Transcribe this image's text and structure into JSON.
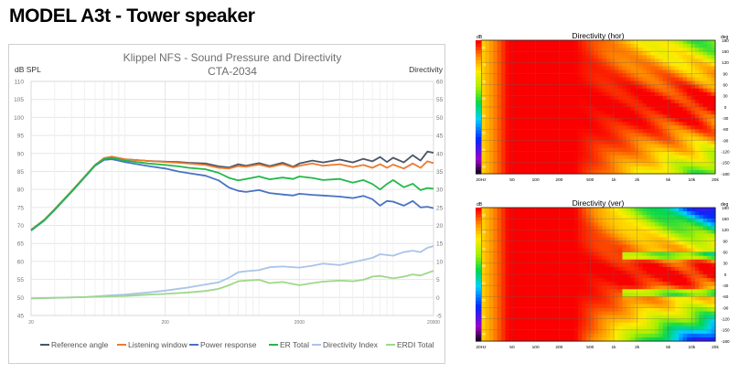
{
  "page": {
    "title": "MODEL A3t - Tower speaker"
  },
  "colors": {
    "reference_angle": "#4a5666",
    "listening_window": "#ec7a30",
    "power_response": "#4a72c4",
    "er_total": "#22b84a",
    "directivity_index": "#a9c4ea",
    "erdi_total": "#9fd88a",
    "grid": "#e6e6e6"
  },
  "chart_data": [
    {
      "type": "line",
      "title": "Klippel NFS - Sound Pressure and Directivity",
      "subtitle": "CTA-2034",
      "ylabel_left": "dB SPL",
      "ylabel_right": "Directivity",
      "xscale": "log",
      "xlim": [
        20,
        20000
      ],
      "ylim_left": [
        45,
        110
      ],
      "ylim_right": [
        -5,
        60
      ],
      "yticks_left": [
        "110",
        "105",
        "100",
        "95",
        "90",
        "85",
        "80",
        "75",
        "70",
        "65",
        "60",
        "55",
        "50",
        "45"
      ],
      "yticks_right": [
        "60",
        "55",
        "50",
        "45",
        "40",
        "35",
        "30",
        "25",
        "20",
        "15",
        "10",
        "5",
        "0",
        "-5"
      ],
      "xticks": [
        {
          "value": 20,
          "label": "20"
        },
        {
          "value": 200,
          "label": "200"
        },
        {
          "value": 2000,
          "label": "2000"
        },
        {
          "value": 20000,
          "label": "20000"
        }
      ],
      "grid": true,
      "legend_position": "bottom",
      "series": [
        {
          "name": "Reference angle",
          "axis": "left",
          "color_key": "reference_angle",
          "points": [
            [
              20,
              68.8
            ],
            [
              25,
              71.5
            ],
            [
              30,
              74.5
            ],
            [
              40,
              79.5
            ],
            [
              50,
              83.5
            ],
            [
              60,
              86.8
            ],
            [
              70,
              88.6
            ],
            [
              80,
              89.0
            ],
            [
              100,
              88.4
            ],
            [
              150,
              87.9
            ],
            [
              200,
              87.7
            ],
            [
              250,
              87.6
            ],
            [
              300,
              87.4
            ],
            [
              400,
              87.2
            ],
            [
              500,
              86.4
            ],
            [
              600,
              86.1
            ],
            [
              700,
              87.0
            ],
            [
              800,
              86.6
            ],
            [
              1000,
              87.3
            ],
            [
              1200,
              86.5
            ],
            [
              1500,
              87.4
            ],
            [
              1800,
              86.3
            ],
            [
              2000,
              87.2
            ],
            [
              2500,
              88.0
            ],
            [
              3000,
              87.5
            ],
            [
              4000,
              88.3
            ],
            [
              5000,
              87.5
            ],
            [
              6000,
              88.5
            ],
            [
              7000,
              87.8
            ],
            [
              8000,
              89.0
            ],
            [
              9000,
              87.6
            ],
            [
              10000,
              88.8
            ],
            [
              12000,
              87.5
            ],
            [
              14000,
              89.5
            ],
            [
              16000,
              88.0
            ],
            [
              18000,
              90.5
            ],
            [
              20000,
              90.2
            ]
          ]
        },
        {
          "name": "Listening window",
          "axis": "left",
          "color_key": "listening_window",
          "points": [
            [
              20,
              68.8
            ],
            [
              25,
              71.5
            ],
            [
              30,
              74.5
            ],
            [
              40,
              79.5
            ],
            [
              50,
              83.5
            ],
            [
              60,
              86.8
            ],
            [
              70,
              88.7
            ],
            [
              80,
              89.1
            ],
            [
              100,
              88.4
            ],
            [
              150,
              87.9
            ],
            [
              200,
              87.6
            ],
            [
              250,
              87.4
            ],
            [
              300,
              87.2
            ],
            [
              400,
              86.8
            ],
            [
              500,
              86.0
            ],
            [
              600,
              85.8
            ],
            [
              700,
              86.5
            ],
            [
              800,
              86.3
            ],
            [
              1000,
              86.9
            ],
            [
              1200,
              86.2
            ],
            [
              1500,
              87.0
            ],
            [
              1800,
              86.1
            ],
            [
              2000,
              86.6
            ],
            [
              2500,
              87.2
            ],
            [
              3000,
              86.6
            ],
            [
              4000,
              87.0
            ],
            [
              5000,
              86.2
            ],
            [
              6000,
              86.8
            ],
            [
              7000,
              86.0
            ],
            [
              8000,
              87.0
            ],
            [
              9000,
              86.0
            ],
            [
              10000,
              86.9
            ],
            [
              12000,
              85.8
            ],
            [
              14000,
              87.2
            ],
            [
              16000,
              86.0
            ],
            [
              18000,
              87.8
            ],
            [
              20000,
              87.3
            ]
          ]
        },
        {
          "name": "Power response",
          "axis": "left",
          "color_key": "power_response",
          "points": [
            [
              20,
              68.6
            ],
            [
              25,
              71.3
            ],
            [
              30,
              74.3
            ],
            [
              40,
              79.3
            ],
            [
              50,
              83.3
            ],
            [
              60,
              86.6
            ],
            [
              70,
              88.2
            ],
            [
              80,
              88.4
            ],
            [
              100,
              87.6
            ],
            [
              150,
              86.5
            ],
            [
              200,
              85.8
            ],
            [
              250,
              85.0
            ],
            [
              300,
              84.5
            ],
            [
              400,
              83.8
            ],
            [
              500,
              82.5
            ],
            [
              600,
              80.5
            ],
            [
              700,
              79.6
            ],
            [
              800,
              79.3
            ],
            [
              1000,
              79.8
            ],
            [
              1200,
              79.0
            ],
            [
              1500,
              78.6
            ],
            [
              1800,
              78.3
            ],
            [
              2000,
              78.8
            ],
            [
              2500,
              78.5
            ],
            [
              3000,
              78.3
            ],
            [
              4000,
              78.0
            ],
            [
              5000,
              77.6
            ],
            [
              6000,
              78.2
            ],
            [
              7000,
              77.3
            ],
            [
              8000,
              75.5
            ],
            [
              9000,
              76.8
            ],
            [
              10000,
              76.6
            ],
            [
              12000,
              75.5
            ],
            [
              14000,
              76.8
            ],
            [
              16000,
              75.0
            ],
            [
              18000,
              75.2
            ],
            [
              20000,
              74.8
            ]
          ]
        },
        {
          "name": "ER Total",
          "axis": "left",
          "color_key": "er_total",
          "points": [
            [
              20,
              68.7
            ],
            [
              25,
              71.4
            ],
            [
              30,
              74.4
            ],
            [
              40,
              79.4
            ],
            [
              50,
              83.4
            ],
            [
              60,
              86.7
            ],
            [
              70,
              88.5
            ],
            [
              80,
              88.8
            ],
            [
              100,
              88.0
            ],
            [
              150,
              87.2
            ],
            [
              200,
              86.8
            ],
            [
              250,
              86.4
            ],
            [
              300,
              86.0
            ],
            [
              400,
              85.6
            ],
            [
              500,
              84.6
            ],
            [
              600,
              83.2
            ],
            [
              700,
              82.5
            ],
            [
              800,
              82.9
            ],
            [
              1000,
              83.6
            ],
            [
              1200,
              82.8
            ],
            [
              1500,
              83.3
            ],
            [
              1800,
              82.9
            ],
            [
              2000,
              83.6
            ],
            [
              2500,
              83.2
            ],
            [
              3000,
              82.6
            ],
            [
              4000,
              82.9
            ],
            [
              5000,
              81.9
            ],
            [
              6000,
              82.6
            ],
            [
              7000,
              81.5
            ],
            [
              8000,
              80.0
            ],
            [
              9000,
              81.5
            ],
            [
              10000,
              82.6
            ],
            [
              12000,
              80.6
            ],
            [
              14000,
              81.6
            ],
            [
              16000,
              79.8
            ],
            [
              18000,
              80.4
            ],
            [
              20000,
              80.2
            ]
          ]
        },
        {
          "name": "Directivity Index",
          "axis": "right",
          "color_key": "directivity_index",
          "points": [
            [
              20,
              -0.3
            ],
            [
              30,
              -0.1
            ],
            [
              50,
              0.1
            ],
            [
              80,
              0.6
            ],
            [
              100,
              0.8
            ],
            [
              150,
              1.4
            ],
            [
              200,
              1.9
            ],
            [
              300,
              2.8
            ],
            [
              400,
              3.6
            ],
            [
              500,
              4.2
            ],
            [
              600,
              5.5
            ],
            [
              700,
              7.0
            ],
            [
              800,
              7.3
            ],
            [
              1000,
              7.6
            ],
            [
              1200,
              8.4
            ],
            [
              1500,
              8.6
            ],
            [
              2000,
              8.3
            ],
            [
              2500,
              8.8
            ],
            [
              3000,
              9.4
            ],
            [
              4000,
              9.0
            ],
            [
              5000,
              9.8
            ],
            [
              6000,
              10.4
            ],
            [
              7000,
              11.0
            ],
            [
              8000,
              12.0
            ],
            [
              10000,
              11.6
            ],
            [
              12000,
              12.6
            ],
            [
              14000,
              13.0
            ],
            [
              16000,
              12.6
            ],
            [
              18000,
              13.8
            ],
            [
              20000,
              14.3
            ]
          ]
        },
        {
          "name": "ERDI Total",
          "axis": "right",
          "color_key": "erdi_total",
          "points": [
            [
              20,
              -0.2
            ],
            [
              30,
              -0.1
            ],
            [
              50,
              0.1
            ],
            [
              80,
              0.3
            ],
            [
              100,
              0.4
            ],
            [
              150,
              0.8
            ],
            [
              200,
              1.0
            ],
            [
              300,
              1.4
            ],
            [
              400,
              1.8
            ],
            [
              500,
              2.4
            ],
            [
              600,
              3.4
            ],
            [
              700,
              4.5
            ],
            [
              800,
              4.7
            ],
            [
              1000,
              4.9
            ],
            [
              1200,
              4.0
            ],
            [
              1500,
              4.3
            ],
            [
              2000,
              3.4
            ],
            [
              2500,
              4.0
            ],
            [
              3000,
              4.4
            ],
            [
              4000,
              4.7
            ],
            [
              5000,
              4.5
            ],
            [
              6000,
              4.9
            ],
            [
              7000,
              5.8
            ],
            [
              8000,
              6.0
            ],
            [
              10000,
              5.3
            ],
            [
              12000,
              5.8
            ],
            [
              14000,
              6.4
            ],
            [
              16000,
              6.1
            ],
            [
              18000,
              6.8
            ],
            [
              20000,
              7.4
            ]
          ]
        }
      ]
    },
    {
      "type": "heatmap",
      "title": "Directivity (hor)",
      "ylabel_left": "dB",
      "ylabel_right": "deg",
      "xscale": "log",
      "xlim": [
        20,
        20000
      ],
      "ylim": [
        -180,
        180
      ],
      "xticks": [
        "20Hz",
        "50",
        "100",
        "200",
        "500",
        "1k",
        "2k",
        "5k",
        "10k",
        "20k"
      ],
      "colorbar_ticks": [
        "80",
        "75",
        "70",
        "65",
        "60",
        "55",
        "50",
        "45"
      ],
      "angle_ticks": [
        "180",
        "150",
        "120",
        "90",
        "60",
        "30",
        "0",
        "-30",
        "-60",
        "-90",
        "-120",
        "-150",
        "-180"
      ]
    },
    {
      "type": "heatmap",
      "title": "Directivity (ver)",
      "ylabel_left": "dB",
      "ylabel_right": "deg",
      "xscale": "log",
      "xlim": [
        20,
        20000
      ],
      "ylim": [
        -180,
        180
      ],
      "xticks": [
        "20Hz",
        "50",
        "100",
        "200",
        "500",
        "1k",
        "2k",
        "5k",
        "10k",
        "20k"
      ],
      "colorbar_ticks": [
        "80",
        "75",
        "70",
        "65",
        "60",
        "55",
        "50",
        "45"
      ],
      "angle_ticks": [
        "180",
        "150",
        "120",
        "90",
        "60",
        "30",
        "0",
        "-30",
        "-60",
        "-90",
        "-120",
        "-150",
        "-180"
      ]
    }
  ]
}
